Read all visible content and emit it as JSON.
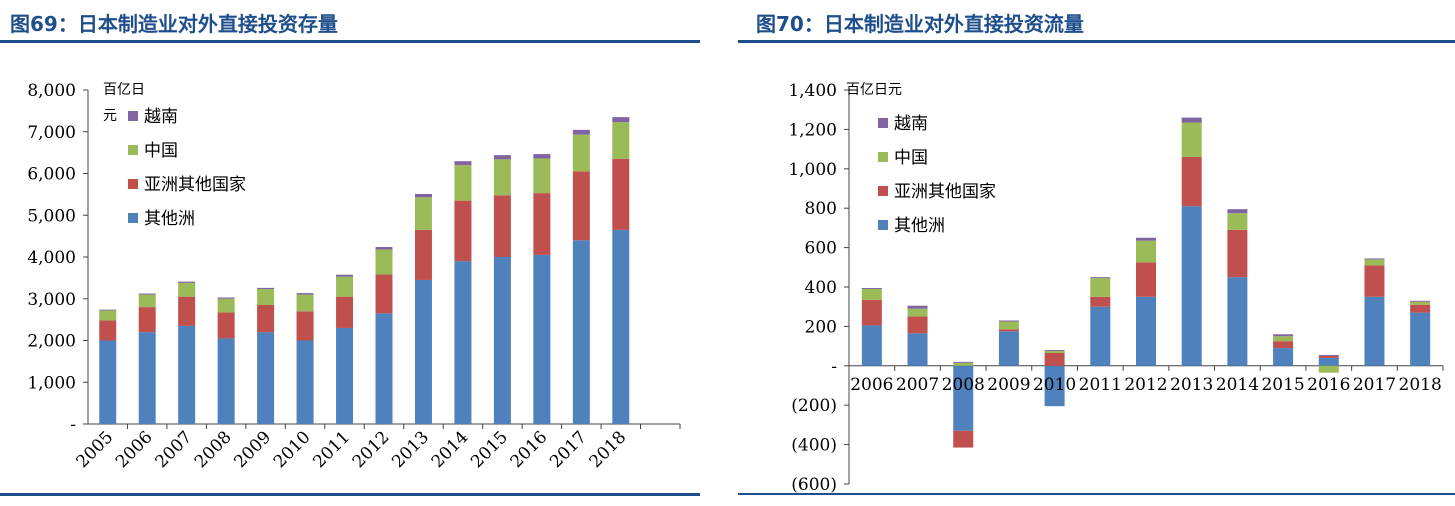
{
  "charts": [
    {
      "title": "图69：日本制造业对外直接投资存量",
      "unit_label_line1": "百亿日",
      "unit_label_line2": "元",
      "chart_data": {
        "type": "bar",
        "stacked": true,
        "categories": [
          "2005",
          "2006",
          "2007",
          "2008",
          "2009",
          "2010",
          "2011",
          "2012",
          "2013",
          "2014",
          "2015",
          "2016",
          "2017",
          "2018"
        ],
        "series": [
          {
            "name": "其他洲",
            "color": "#4f81bd",
            "values": [
              2000,
              2200,
              2350,
              2050,
              2200,
              2000,
              2300,
              2650,
              3450,
              3900,
              4000,
              4050,
              4400,
              4650
            ]
          },
          {
            "name": "亚洲其他国家",
            "color": "#c0504d",
            "values": [
              480,
              600,
              700,
              620,
              650,
              700,
              750,
              930,
              1200,
              1450,
              1480,
              1480,
              1650,
              1700
            ]
          },
          {
            "name": "中国",
            "color": "#9bbb59",
            "values": [
              240,
              300,
              330,
              330,
              380,
              400,
              480,
              600,
              780,
              850,
              860,
              830,
              880,
              880
            ]
          },
          {
            "name": "越南",
            "color": "#8064a2",
            "values": [
              20,
              25,
              30,
              30,
              30,
              35,
              45,
              60,
              80,
              95,
              100,
              105,
              115,
              120
            ]
          }
        ],
        "ylim": [
          0,
          8000
        ],
        "yticks": [
          0,
          1000,
          2000,
          3000,
          4000,
          5000,
          6000,
          7000,
          8000
        ],
        "ytick_labels": [
          "-",
          "1,000",
          "2,000",
          "3,000",
          "4,000",
          "5,000",
          "6,000",
          "7,000",
          "8,000"
        ],
        "legend_order": [
          "越南",
          "中国",
          "亚洲其他国家",
          "其他洲"
        ],
        "legend_position": "top-left",
        "grid": false
      }
    },
    {
      "title": "图70：日本制造业对外直接投资流量",
      "unit_label_line1": "百亿日元",
      "unit_label_line2": "",
      "chart_data": {
        "type": "bar",
        "stacked": true,
        "categories": [
          "2006",
          "2007",
          "2008",
          "2009",
          "2010",
          "2011",
          "2012",
          "2013",
          "2014",
          "2015",
          "2016",
          "2017",
          "2018"
        ],
        "series": [
          {
            "name": "其他洲",
            "color": "#4f81bd",
            "values": [
              205,
              165,
              -330,
              175,
              -205,
              300,
              350,
              810,
              450,
              90,
              40,
              350,
              270
            ]
          },
          {
            "name": "亚洲其他国家",
            "color": "#c0504d",
            "values": [
              130,
              85,
              -85,
              10,
              65,
              50,
              175,
              250,
              240,
              35,
              10,
              160,
              40
            ]
          },
          {
            "name": "中国",
            "color": "#9bbb59",
            "values": [
              55,
              40,
              15,
              40,
              10,
              95,
              110,
              175,
              85,
              25,
              -35,
              30,
              15
            ]
          },
          {
            "name": "越南",
            "color": "#8064a2",
            "values": [
              5,
              15,
              5,
              5,
              5,
              5,
              15,
              25,
              20,
              10,
              5,
              5,
              5
            ]
          }
        ],
        "ylim": [
          -600,
          1400
        ],
        "yticks": [
          -600,
          -400,
          -200,
          0,
          200,
          400,
          600,
          800,
          1000,
          1200,
          1400
        ],
        "ytick_labels": [
          "(600)",
          "(400)",
          "(200)",
          "-",
          "200",
          "400",
          "600",
          "800",
          "1,000",
          "1,200",
          "1,400"
        ],
        "legend_order": [
          "越南",
          "中国",
          "亚洲其他国家",
          "其他洲"
        ],
        "legend_position": "top-left",
        "grid": false
      }
    }
  ]
}
